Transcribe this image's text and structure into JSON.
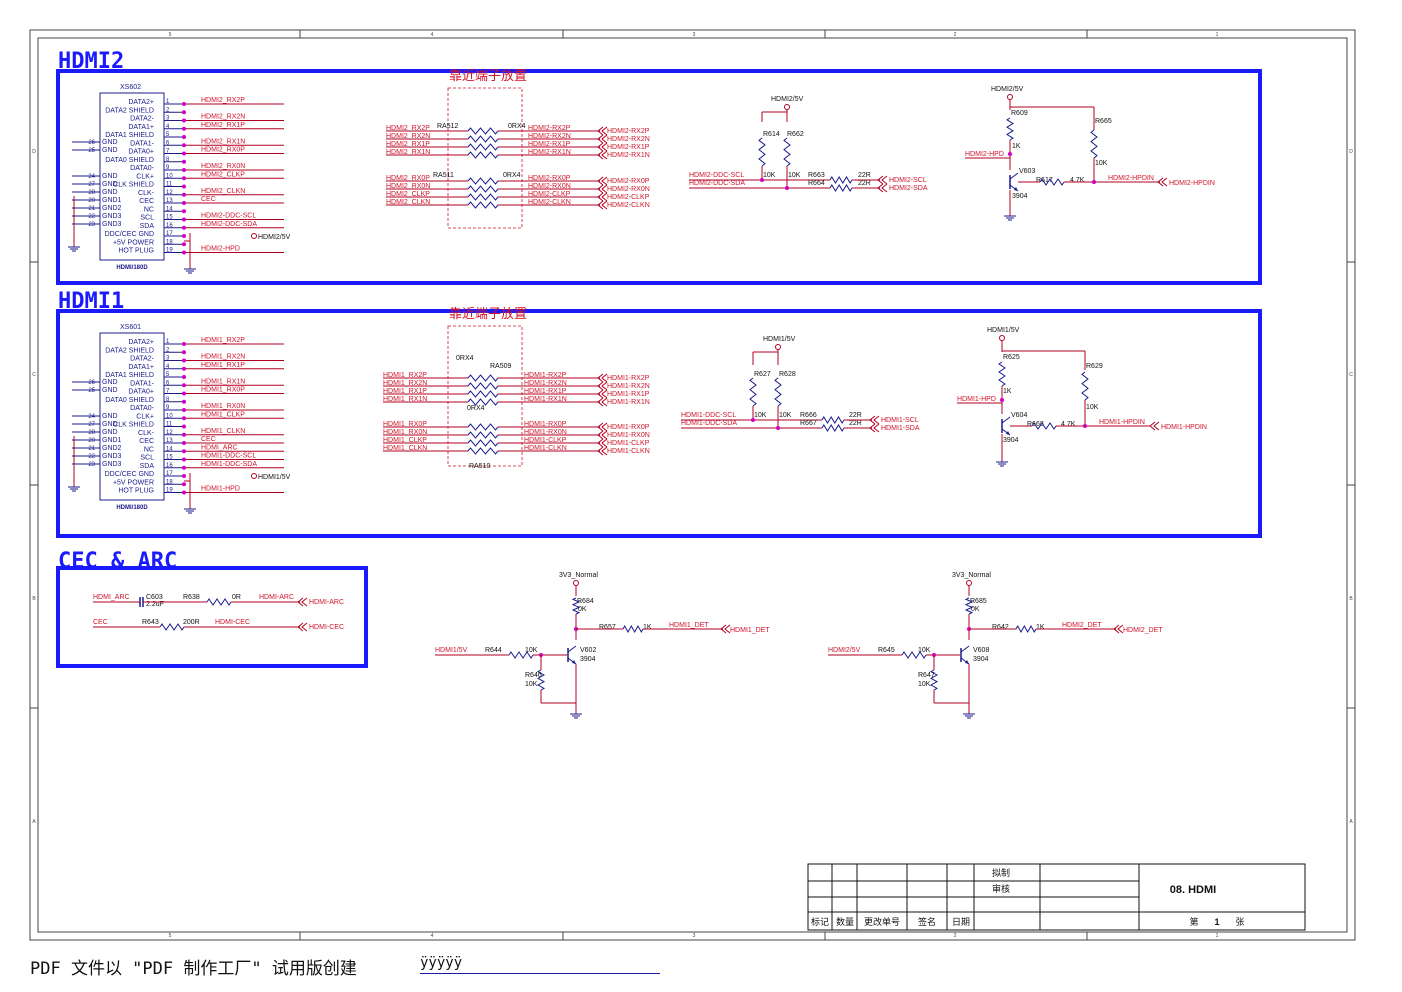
{
  "frame": {
    "col_labels": [
      "5",
      "4",
      "3",
      "2",
      "1"
    ],
    "row_labels": [
      "D",
      "C",
      "B",
      "A"
    ]
  },
  "colors": {
    "border": "#1a1aff",
    "wire": "#b00020",
    "net": "#d0142a",
    "comp": "#1a1a8c",
    "junction": "#d000c0",
    "section": "#1a1aff"
  },
  "sections": {
    "hdmi2": "HDMI2",
    "hdmi1": "HDMI1",
    "cec": "CEC & ARC"
  },
  "notes": {
    "near_terminal_a": "靠近端子放置",
    "near_terminal_b": "靠近端子放置"
  },
  "connector_pins": [
    "DATA2+",
    "DATA2 SHIELD",
    "DATA2-",
    "DATA1+",
    "DATA1 SHIELD",
    "DATA1-",
    "DATA0+",
    "DATA0 SHIELD",
    "DATA0-",
    "CLK+",
    "CLK SHIELD",
    "CLK-",
    "CEC",
    "NC",
    "SCL",
    "SDA",
    "DDC/CEC GND",
    "+5V POWER",
    "HOT PLUG"
  ],
  "gnd_pins": [
    "GND",
    "GND",
    "GND",
    "GND",
    "GND1",
    "GND2",
    "GND3"
  ],
  "gnd_nums": [
    "26",
    "25",
    "24",
    "27",
    "28",
    "20",
    "21",
    "22",
    "23"
  ],
  "hdmi2": {
    "ref": "XS602",
    "part": "HDMI/180D",
    "nets": [
      "HDMI2_RX2P",
      "",
      "HDMI2_RX2N",
      "HDMI2_RX1P",
      "",
      "HDMI2_RX1N",
      "HDMI2_RX0P",
      "",
      "HDMI2_RX0N",
      "HDMI2_CLKP",
      "",
      "HDMI2_CLKN",
      "CEC",
      "",
      "HDMI2-DDC-SCL",
      "HDMI2-DDC-SDA",
      "",
      "",
      "HDMI2-HPD"
    ],
    "pwr_label": "HDMI2/5V",
    "ra_a": {
      "ref": "RA512",
      "val": "0RX4",
      "in": [
        "HDMI2_RX2P",
        "HDMI2_RX2N",
        "HDMI2_RX1P",
        "HDMI2_RX1N"
      ],
      "out": [
        "HDMI2-RX2P",
        "HDMI2-RX2N",
        "HDMI2-RX1P",
        "HDMI2-RX1N"
      ]
    },
    "ra_b": {
      "ref": "RA511",
      "val": "0RX4",
      "in": [
        "HDMI2_RX0P",
        "HDMI2_RX0N",
        "HDMI2_CLKP",
        "HDMI2_CLKN"
      ],
      "out": [
        "HDMI2-RX0P",
        "HDMI2-RX0N",
        "HDMI2-CLKP",
        "HDMI2-CLKN"
      ]
    },
    "ports": [
      "HDMI2-RX2P",
      "HDMI2-RX2N",
      "HDMI2-RX1P",
      "HDMI2-RX1N",
      "HDMI2-RX0P",
      "HDMI2-RX0N",
      "HDMI2-CLKP",
      "HDMI2-CLKN"
    ],
    "ddc": {
      "pwr": "HDMI2/5V",
      "r1": "R614",
      "r2": "R662",
      "v1": "10K",
      "v2": "10K",
      "scl": "HDMI2-DDC-SCL",
      "sda": "HDMI2-DDC-SDA",
      "rs1": "R663",
      "rs2": "R664",
      "vs": "22R",
      "o1": "HDMI2-SCL",
      "o2": "HDMI2-SDA"
    },
    "hpd": {
      "pwr": "HDMI2/5V",
      "r1": "R609",
      "v1": "1K",
      "r2": "R665",
      "v2": "10K",
      "q": "V603",
      "qp": "3904",
      "rb": "R617",
      "vb": "4.7K",
      "in": "HDMI2-HPD",
      "out": "HDMI2-HPDIN",
      "port": "HDMI2-HPDIN"
    }
  },
  "hdmi1": {
    "ref": "XS601",
    "part": "HDMI/180D",
    "nets": [
      "HDMI1_RX2P",
      "",
      "HDMI1_RX2N",
      "HDMI1_RX1P",
      "",
      "HDMI1_RX1N",
      "HDMI1_RX0P",
      "",
      "HDMI1_RX0N",
      "HDMI1_CLKP",
      "",
      "HDMI1_CLKN",
      "CEC",
      "HDMI_ARC",
      "HDMI1-DDC-SCL",
      "HDMI1-DDC-SDA",
      "",
      "",
      "HDMI1-HPD"
    ],
    "pwr_label": "HDMI1/5V",
    "ra_a": {
      "ref": "RA509",
      "val": "0RX4",
      "in": [
        "HDMI1_RX2P",
        "HDMI1_RX2N",
        "HDMI1_RX1P",
        "HDMI1_RX1N"
      ],
      "out": [
        "HDMI1-RX2P",
        "HDMI1-RX2N",
        "HDMI1-RX1P",
        "HDMI1-RX1N"
      ]
    },
    "ra_b": {
      "ref": "RA510",
      "val": "0RX4",
      "in": [
        "HDMI1_RX0P",
        "HDMI1_RX0N",
        "HDMI1_CLKP",
        "HDMI1_CLKN"
      ],
      "out": [
        "HDMI1-RX0P",
        "HDMI1-RX0N",
        "HDMI1-CLKP",
        "HDMI1-CLKN"
      ]
    },
    "ports": [
      "HDMI1-RX2P",
      "HDMI1-RX2N",
      "HDMI1-RX1P",
      "HDMI1-RX1N",
      "HDMI1-RX0P",
      "HDMI1-RX0N",
      "HDMI1-CLKP",
      "HDMI1-CLKN"
    ],
    "ddc": {
      "pwr": "HDMI1/5V",
      "r1": "R627",
      "r2": "R628",
      "v1": "10K",
      "v2": "10K",
      "scl": "HDMI1-DDC-SCL",
      "sda": "HDMI1-DDC-SDA",
      "rs1": "R666",
      "rs2": "R667",
      "vs": "22R",
      "o1": "HDMI1-SCL",
      "o2": "HDMI1-SDA"
    },
    "hpd": {
      "pwr": "HDMI1/5V",
      "r1": "R625",
      "v1": "1K",
      "r2": "R629",
      "v2": "10K",
      "q": "V604",
      "qp": "3904",
      "rb": "R668",
      "vb": "4.7K",
      "in": "HDMI1-HPD",
      "out": "HDMI1-HPDIN",
      "port": "HDMI1-HPDIN"
    }
  },
  "cec": {
    "arc_net": "HDMI_ARC",
    "c_ref": "C603",
    "c_val": "2.2uF",
    "r_ref": "R638",
    "r_val": "0R",
    "arc_out": "HDMI-ARC",
    "arc_port": "HDMI-ARC",
    "cec_net": "CEC",
    "r2_ref": "R643",
    "r2_val": "200R",
    "cec_out": "HDMI-CEC",
    "cec_port": "HDMI-CEC"
  },
  "det1": {
    "pwr": "3V3_Normal",
    "rc": "R684",
    "vc": "0K",
    "ro": "R657",
    "vo": "1K",
    "out": "HDMI1_DET",
    "port": "HDMI1_DET",
    "in": "HDMI1/5V",
    "rb": "R644",
    "vb": "10K",
    "re": "R646",
    "ve": "10K",
    "q": "V602",
    "qp": "3904"
  },
  "det2": {
    "pwr": "3V3_Normal",
    "rc": "R685",
    "vc": "0K",
    "ro": "R642",
    "vo": "1K",
    "out": "HDMI2_DET",
    "port": "HDMI2_DET",
    "in": "HDMI2/5V",
    "rb": "R645",
    "vb": "10K",
    "re": "R647",
    "ve": "10K",
    "q": "V608",
    "qp": "3904"
  },
  "title_block": {
    "made": "拟制",
    "review": "审核",
    "title": "08. HDMI",
    "h1": "标记",
    "h2": "数量",
    "h3": "更改单号",
    "h4": "签名",
    "h5": "日期",
    "sheet_a": "第",
    "sheet_n": "1",
    "sheet_b": "张"
  },
  "footer": {
    "text": "PDF 文件以 \"PDF 制作工厂\" 试用版创建",
    "link": "ÿÿÿÿÿ"
  }
}
